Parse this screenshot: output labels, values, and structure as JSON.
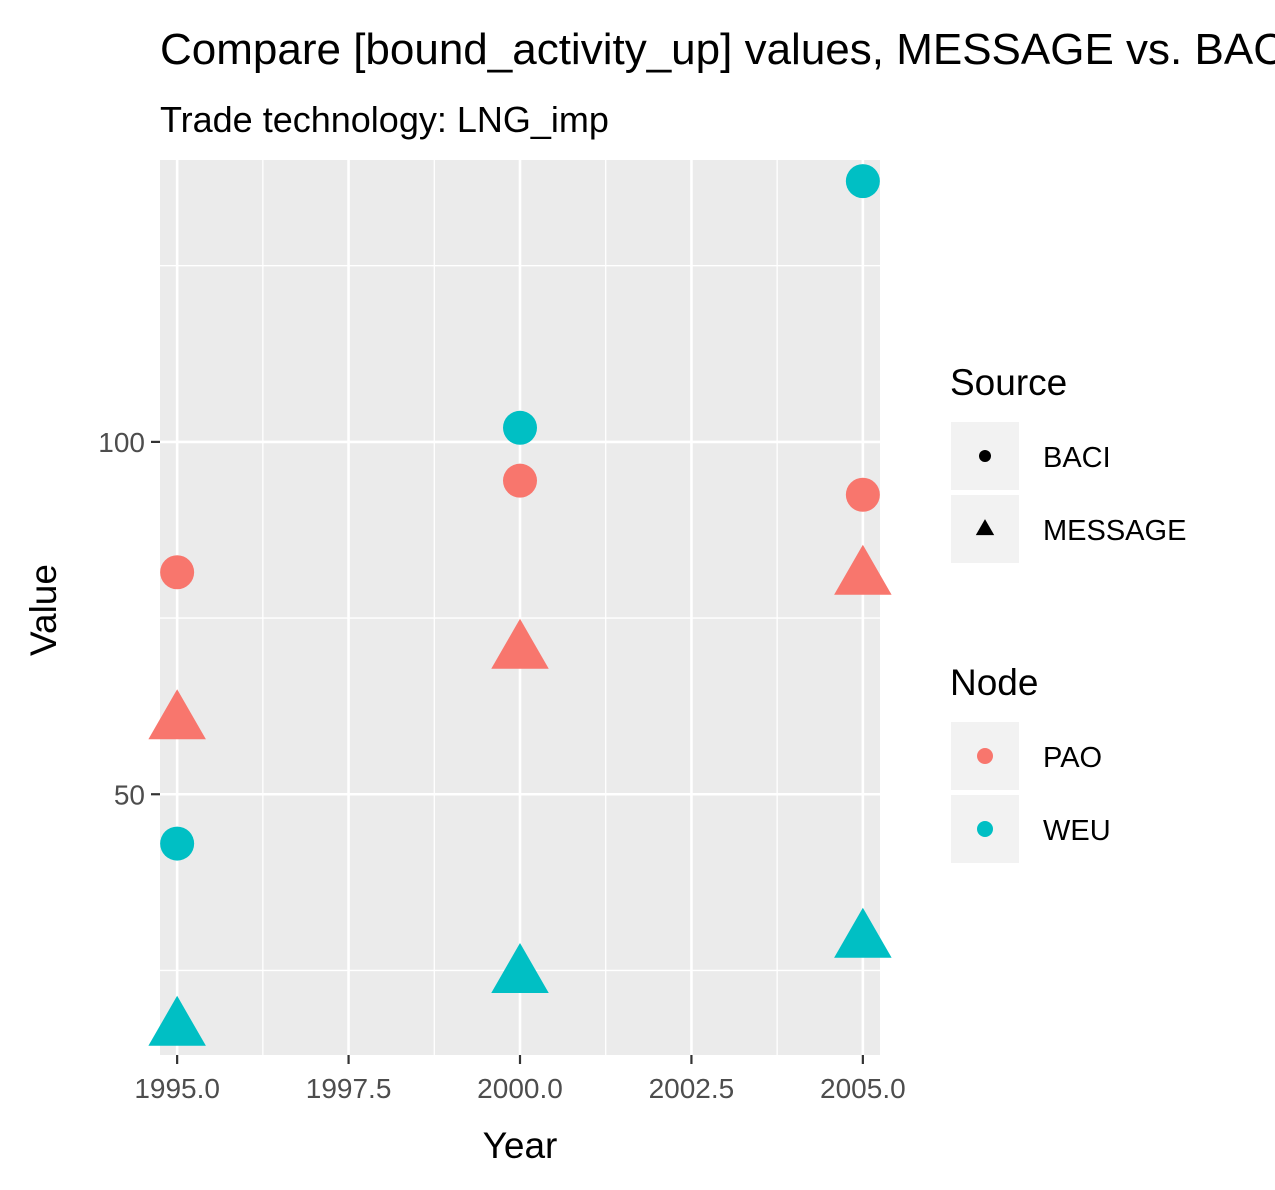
{
  "chart_data": {
    "type": "scatter",
    "title": "Compare [bound_activity_up] values, MESSAGE vs. BACI",
    "subtitle": "Trade technology: LNG_imp",
    "xlabel": "Year",
    "ylabel": "Value",
    "xlim": [
      1994.75,
      2005.25
    ],
    "ylim": [
      13,
      140
    ],
    "x_ticks": [
      1995,
      1997.5,
      2000,
      2002.5,
      2005
    ],
    "x_tick_labels": [
      "1995.0",
      "1997.5",
      "2000.0",
      "2002.5",
      "2005.0"
    ],
    "y_ticks": [
      50,
      100
    ],
    "y_tick_labels": [
      "50",
      "100"
    ],
    "grid": true,
    "legend_position": "right",
    "legends": [
      {
        "title": "Source",
        "entries": [
          {
            "label": "BACI",
            "shape": "circle"
          },
          {
            "label": "MESSAGE",
            "shape": "triangle"
          }
        ]
      },
      {
        "title": "Node",
        "entries": [
          {
            "label": "PAO",
            "color": "#F8766D"
          },
          {
            "label": "WEU",
            "color": "#00BFC4"
          }
        ]
      }
    ],
    "series": [
      {
        "node": "PAO",
        "source": "BACI",
        "color": "#F8766D",
        "shape": "circle",
        "x": [
          1995,
          2000,
          2005
        ],
        "y": [
          81.5,
          94.5,
          92.5
        ]
      },
      {
        "node": "PAO",
        "source": "MESSAGE",
        "color": "#F8766D",
        "shape": "triangle",
        "x": [
          1995,
          2000,
          2005
        ],
        "y": [
          60.5,
          70.5,
          81
        ]
      },
      {
        "node": "WEU",
        "source": "BACI",
        "color": "#00BFC4",
        "shape": "circle",
        "x": [
          1995,
          2000,
          2005
        ],
        "y": [
          43,
          102,
          137
        ]
      },
      {
        "node": "WEU",
        "source": "MESSAGE",
        "color": "#00BFC4",
        "shape": "triangle",
        "x": [
          1995,
          2000,
          2005
        ],
        "y": [
          17,
          24.5,
          29.5
        ]
      }
    ]
  }
}
